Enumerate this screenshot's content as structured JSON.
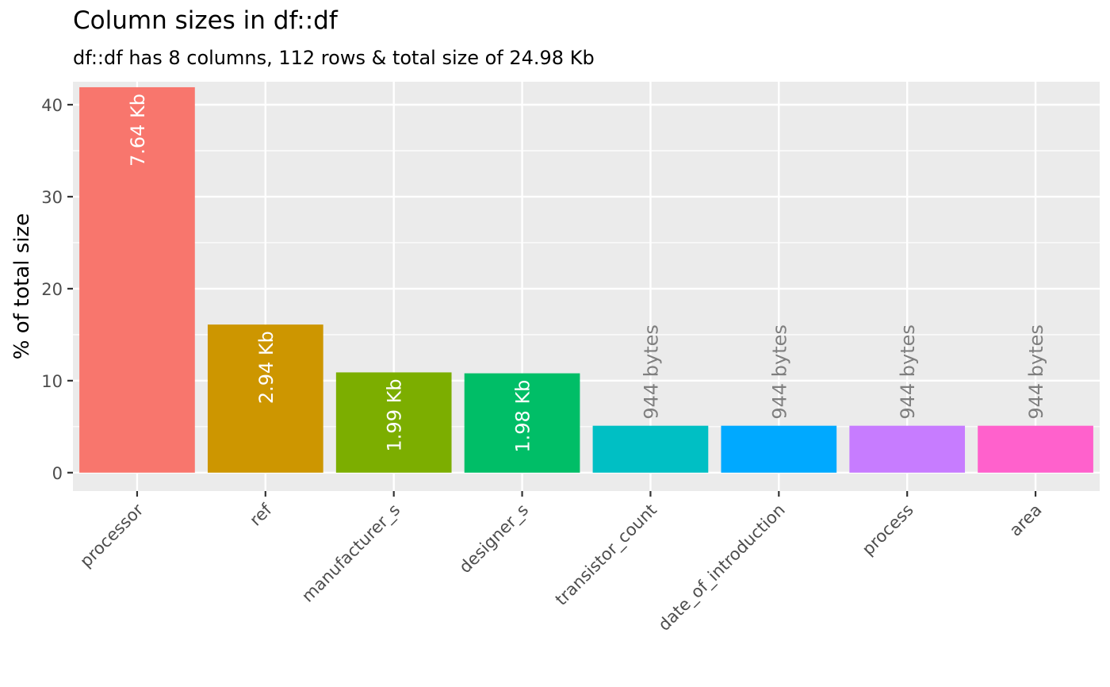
{
  "chart_data": {
    "type": "bar",
    "title": "Column sizes in df::df",
    "subtitle": "df::df has 8 columns, 112 rows & total size of 24.98 Kb",
    "xlabel": "",
    "ylabel": "% of total size",
    "ylim": [
      -2,
      42.5
    ],
    "yticks": [
      0,
      10,
      20,
      30,
      40
    ],
    "ytick_labels": [
      "0",
      "10",
      "20",
      "30",
      "40"
    ],
    "grid": true,
    "legend": "none",
    "categories": [
      "processor",
      "ref",
      "manufacturer_s",
      "designer_s",
      "transistor_count",
      "date_of_introduction",
      "process",
      "area"
    ],
    "values": [
      41.9,
      16.1,
      10.9,
      10.8,
      5.1,
      5.1,
      5.1,
      5.1
    ],
    "labels": [
      "7.64 Kb",
      "2.94 Kb",
      "1.99 Kb",
      "1.98 Kb",
      "944 bytes",
      "944 bytes",
      "944 bytes",
      "944 bytes"
    ],
    "colors": [
      "#F8766D",
      "#CD9600",
      "#7CAE00",
      "#00BE67",
      "#00BFC4",
      "#00A9FF",
      "#C77CFF",
      "#FF61CC"
    ],
    "label_inside": [
      true,
      true,
      true,
      true,
      false,
      false,
      false,
      false
    ]
  }
}
